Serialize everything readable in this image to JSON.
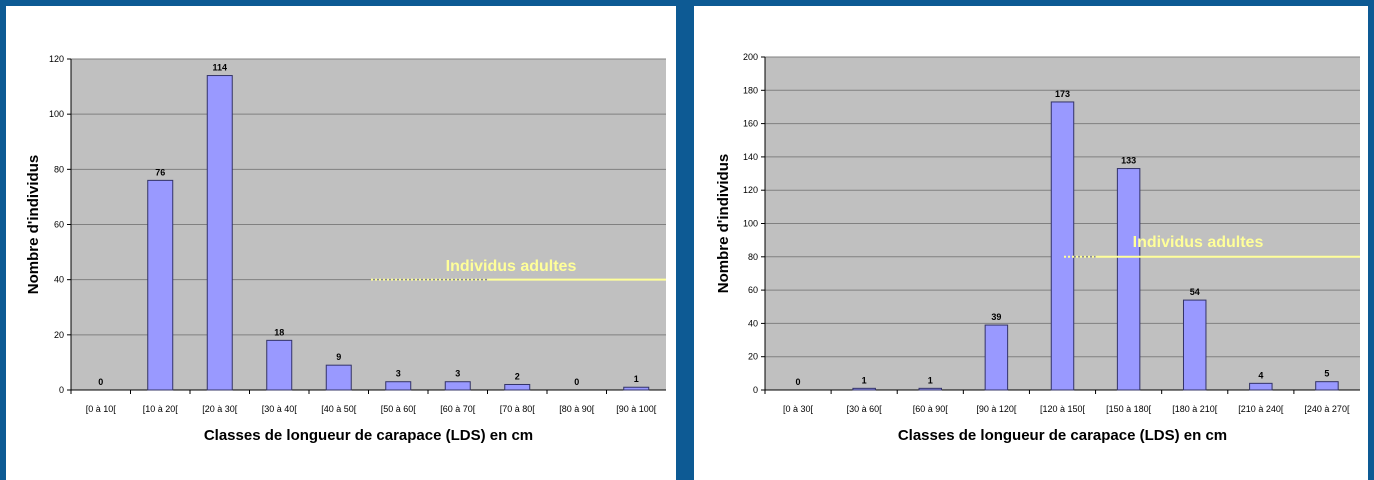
{
  "colors": {
    "background": "#0d5a94",
    "panel": "#ffffff",
    "plot_area": "#c0c0c0",
    "gridline": "#808080",
    "bar_fill": "#9999ff",
    "bar_stroke": "#333366",
    "annotation": "#ffff99"
  },
  "chart_data": [
    {
      "type": "bar",
      "categories": [
        "[0 à 10[",
        "[10 à 20[",
        "[20 à 30[",
        "[30 à 40[",
        "[40 à 50[",
        "[50 à 60[",
        "[60 à 70[",
        "[70 à 80[",
        "[80 à 90[",
        "[90 à 100["
      ],
      "values": [
        0,
        76,
        114,
        18,
        9,
        3,
        3,
        2,
        0,
        1
      ],
      "data_labels": [
        "0",
        "76",
        "114",
        "18",
        "9",
        "3",
        "3",
        "2",
        "0",
        "1"
      ],
      "xlabel": "Classes de longueur de carapace (LDS) en cm",
      "ylabel": "Nombre d'individus",
      "ylim": [
        0,
        120
      ],
      "yticks": [
        0,
        20,
        40,
        60,
        80,
        100,
        120
      ],
      "grid": true,
      "annotation": {
        "text": "Individus adultes",
        "y": 40,
        "dotted_from_category": 5,
        "solid_from_category": 7
      }
    },
    {
      "type": "bar",
      "categories": [
        "[0 à 30[",
        "[30 à 60[",
        "[60 à 90[",
        "[90 à 120[",
        "[120 à 150[",
        "[150 à 180[",
        "[180 à 210[",
        "[210 à 240[",
        "[240 à 270["
      ],
      "values": [
        0,
        1,
        1,
        39,
        173,
        133,
        54,
        4,
        5
      ],
      "data_labels": [
        "0",
        "1",
        "1",
        "39",
        "173",
        "133",
        "54",
        "4",
        "5"
      ],
      "xlabel": "Classes de longueur de carapace (LDS) en cm",
      "ylabel": "Nombre d'individus",
      "ylim": [
        0,
        200
      ],
      "yticks": [
        0,
        20,
        40,
        60,
        80,
        100,
        120,
        140,
        160,
        180,
        200
      ],
      "grid": true,
      "annotation": {
        "text": "Individus adultes",
        "y": 80,
        "dotted_from_category": 4,
        "solid_from_category": 5
      }
    }
  ]
}
